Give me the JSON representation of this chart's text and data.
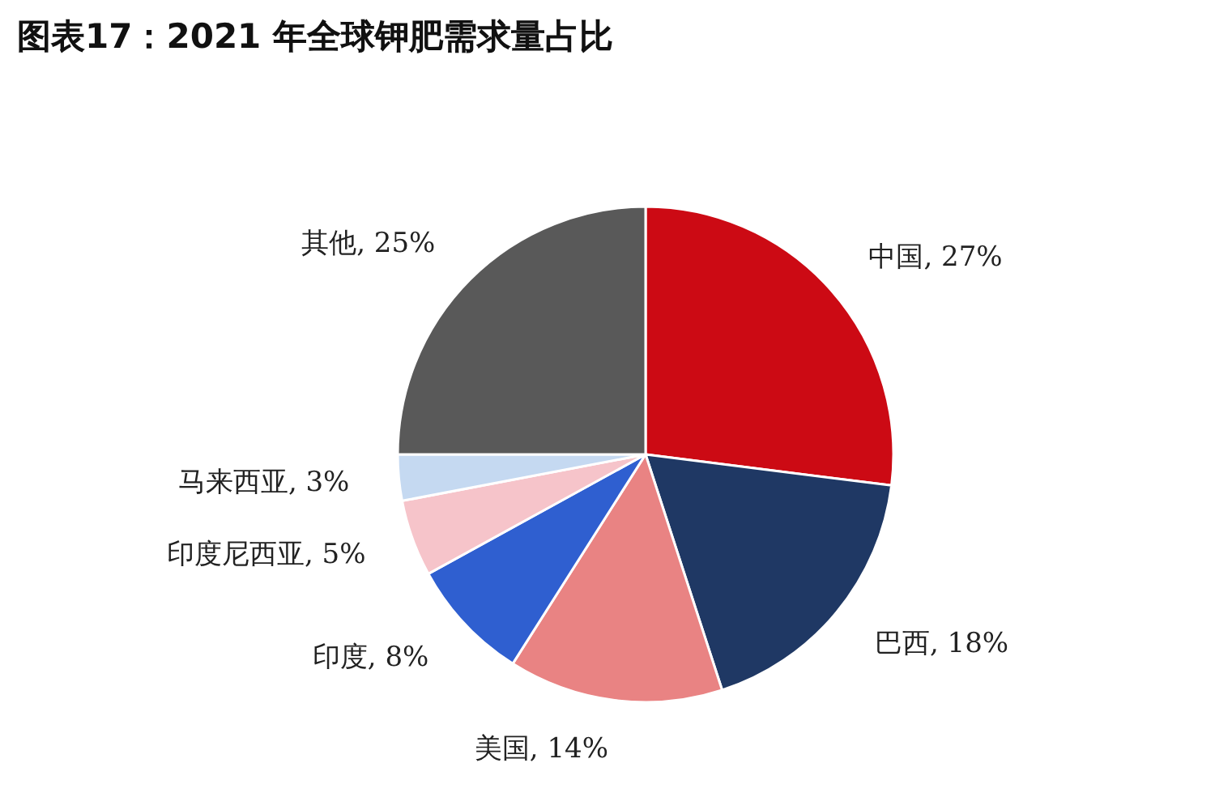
{
  "chart_data": {
    "type": "pie",
    "title": "图表17：2021 年全球钾肥需求量占比",
    "categories": [
      "中国",
      "巴西",
      "美国",
      "印度",
      "印度尼西亚",
      "马来西亚",
      "其他"
    ],
    "values": [
      27,
      18,
      14,
      8,
      5,
      3,
      25
    ],
    "value_labels": [
      "27%",
      "18%",
      "14%",
      "8%",
      "5%",
      "3%",
      "25%"
    ],
    "colors": [
      "#cc0a14",
      "#1f3864",
      "#e98383",
      "#2f5fd0",
      "#f6c4ca",
      "#c5d9f1",
      "#595959"
    ]
  }
}
